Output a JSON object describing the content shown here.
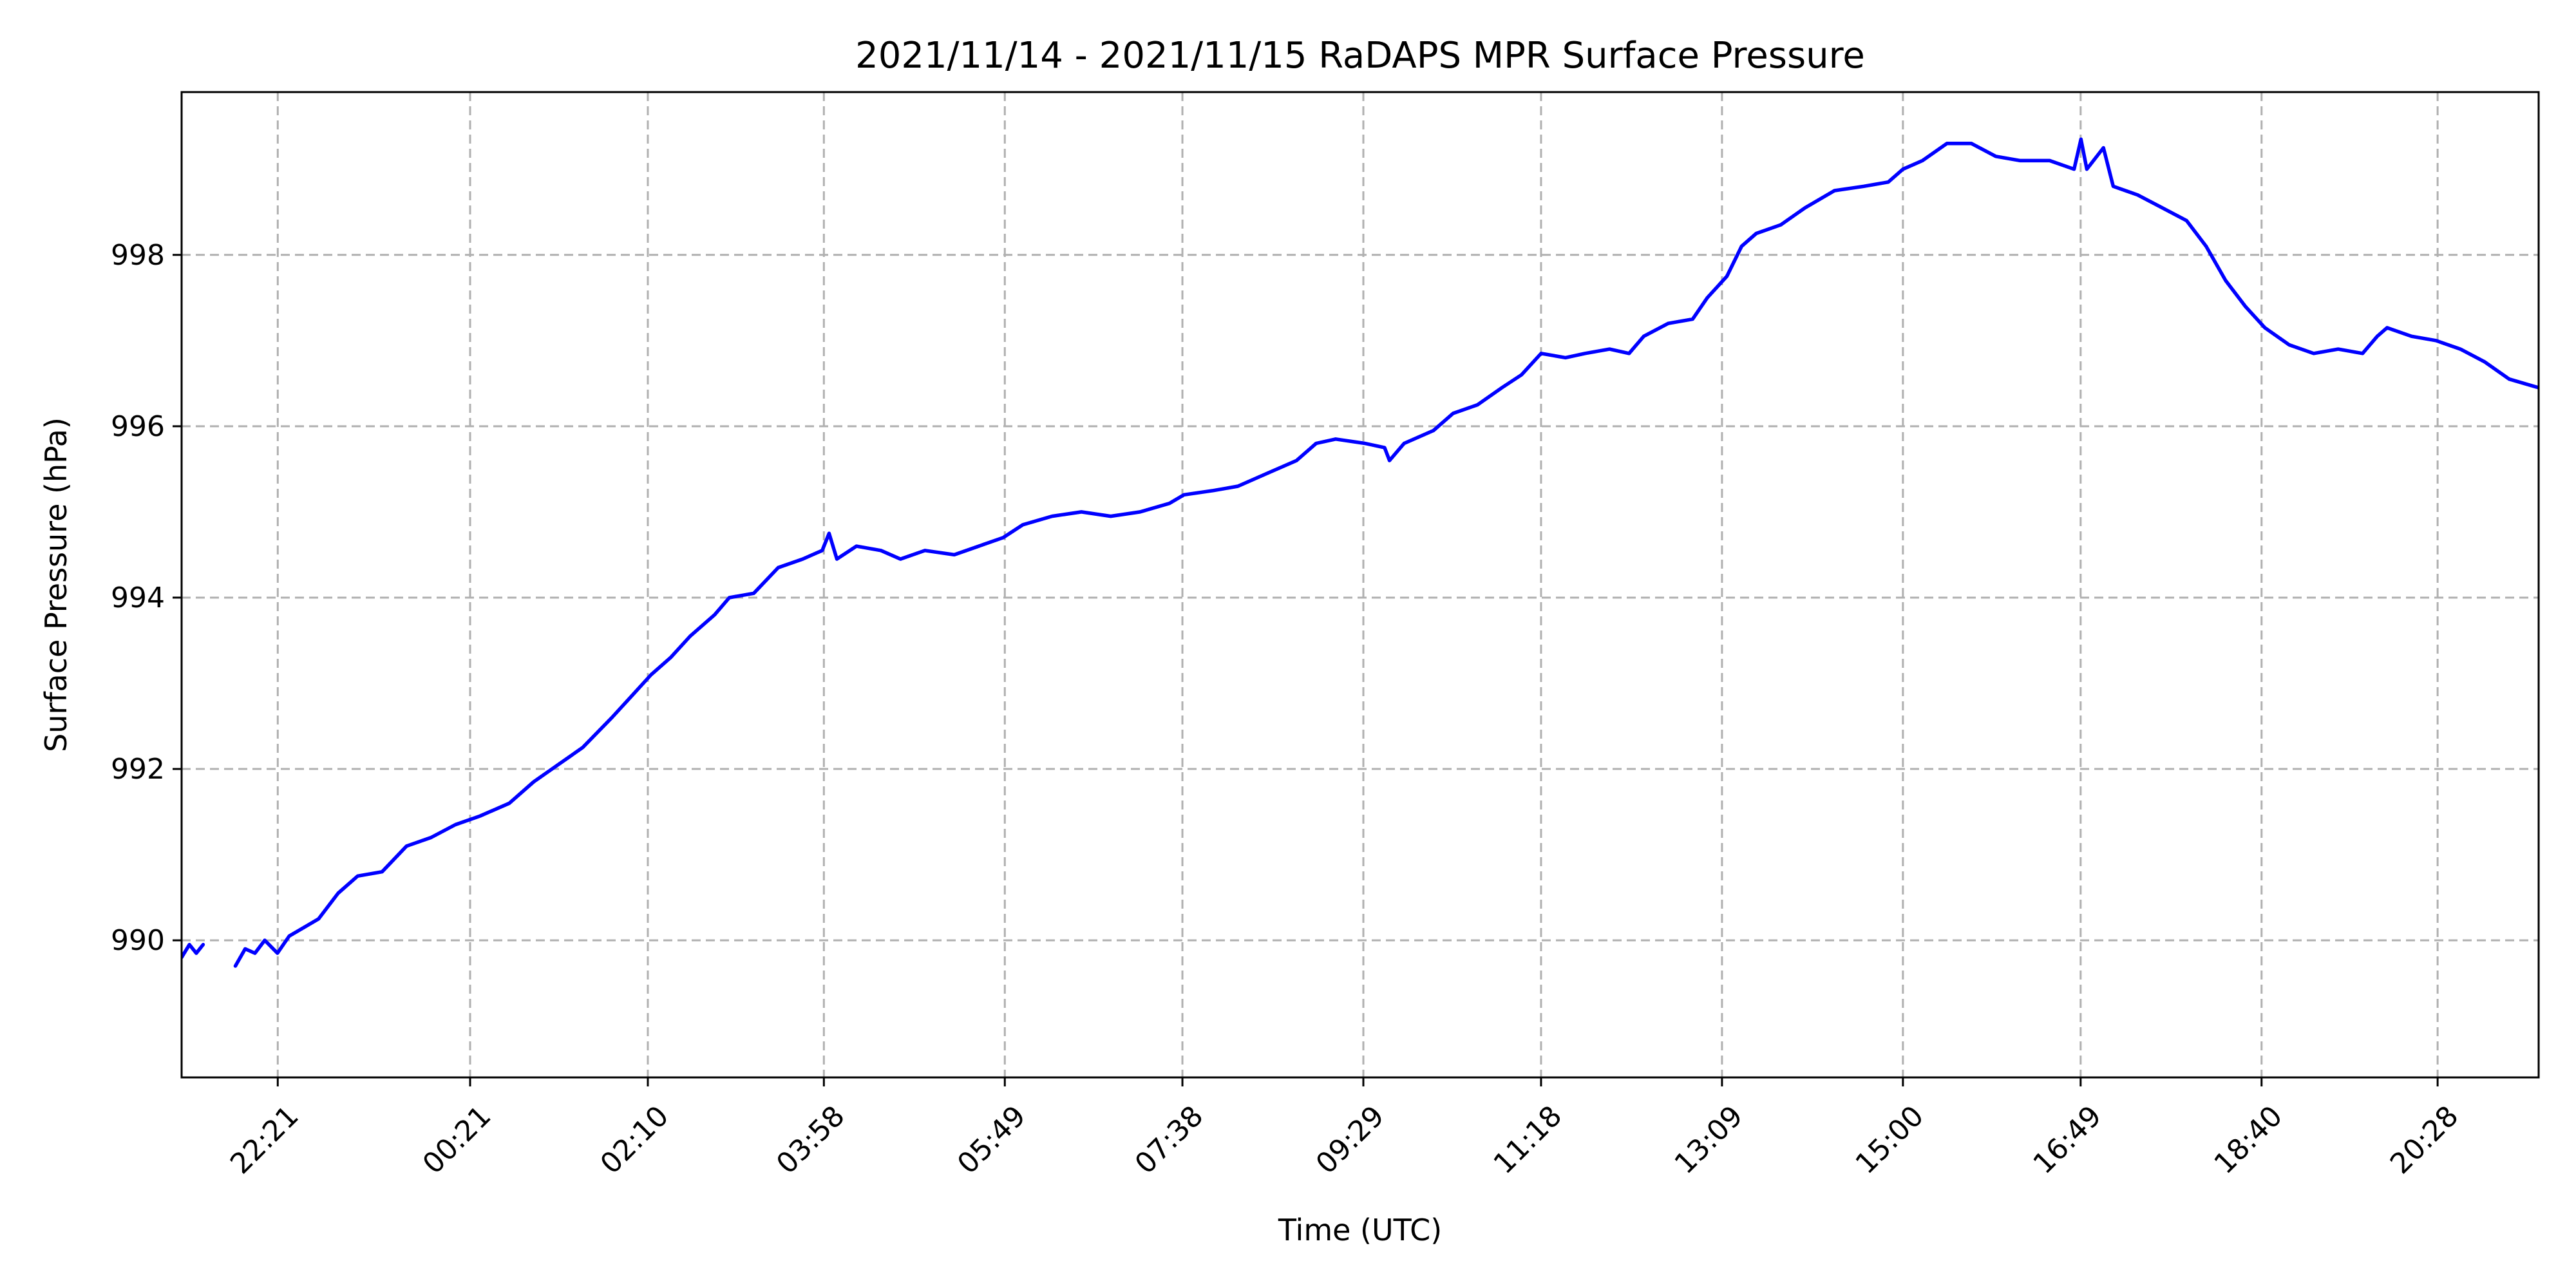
{
  "chart_data": {
    "type": "line",
    "title": "2021/11/14 - 2021/11/15 RaDAPS MPR Surface Pressure",
    "xlabel": "Time (UTC)",
    "ylabel": "Surface Pressure (hPa)",
    "x_unit": "hours",
    "xlim": [
      -2.6,
      21.5
    ],
    "ylim": [
      988.4,
      999.9
    ],
    "x_ticks": [
      {
        "value": -1.617,
        "label": "22:21"
      },
      {
        "value": 0.35,
        "label": "00:21"
      },
      {
        "value": 2.167,
        "label": "02:10"
      },
      {
        "value": 3.967,
        "label": "03:58"
      },
      {
        "value": 5.817,
        "label": "05:49"
      },
      {
        "value": 7.633,
        "label": "07:38"
      },
      {
        "value": 9.483,
        "label": "09:29"
      },
      {
        "value": 11.3,
        "label": "11:18"
      },
      {
        "value": 13.15,
        "label": "13:09"
      },
      {
        "value": 15.0,
        "label": "15:00"
      },
      {
        "value": 16.817,
        "label": "16:49"
      },
      {
        "value": 18.667,
        "label": "18:40"
      },
      {
        "value": 20.467,
        "label": "20:28"
      }
    ],
    "y_ticks": [
      990,
      992,
      994,
      996,
      998
    ],
    "grid": true,
    "series": [
      {
        "color": "#0000ff",
        "segments": [
          [
            [
              -2.6,
              989.8
            ],
            [
              -2.52,
              989.95
            ],
            [
              -2.45,
              989.85
            ],
            [
              -2.38,
              989.95
            ]
          ],
          [
            [
              -2.05,
              989.7
            ],
            [
              -1.95,
              989.9
            ],
            [
              -1.85,
              989.85
            ],
            [
              -1.75,
              990.0
            ],
            [
              -1.62,
              989.85
            ],
            [
              -1.5,
              990.05
            ],
            [
              -1.35,
              990.15
            ],
            [
              -1.2,
              990.25
            ],
            [
              -1.0,
              990.55
            ],
            [
              -0.8,
              990.75
            ],
            [
              -0.55,
              990.8
            ],
            [
              -0.3,
              991.1
            ],
            [
              -0.05,
              991.2
            ],
            [
              0.2,
              991.35
            ],
            [
              0.45,
              991.45
            ],
            [
              0.75,
              991.6
            ],
            [
              1.0,
              991.85
            ],
            [
              1.25,
              992.05
            ],
            [
              1.5,
              992.25
            ],
            [
              1.8,
              992.6
            ],
            [
              2.0,
              992.85
            ],
            [
              2.2,
              993.1
            ],
            [
              2.4,
              993.3
            ],
            [
              2.6,
              993.55
            ],
            [
              2.85,
              993.8
            ],
            [
              3.0,
              994.0
            ],
            [
              3.25,
              994.05
            ],
            [
              3.5,
              994.35
            ],
            [
              3.75,
              994.45
            ],
            [
              3.95,
              994.55
            ],
            [
              4.02,
              994.75
            ],
            [
              4.1,
              994.45
            ],
            [
              4.3,
              994.6
            ],
            [
              4.55,
              994.55
            ],
            [
              4.75,
              994.45
            ],
            [
              5.0,
              994.55
            ],
            [
              5.3,
              994.5
            ],
            [
              5.55,
              994.6
            ],
            [
              5.8,
              994.7
            ],
            [
              6.0,
              994.85
            ],
            [
              6.3,
              994.95
            ],
            [
              6.6,
              995.0
            ],
            [
              6.9,
              994.95
            ],
            [
              7.2,
              995.0
            ],
            [
              7.5,
              995.1
            ],
            [
              7.65,
              995.2
            ],
            [
              7.95,
              995.25
            ],
            [
              8.2,
              995.3
            ],
            [
              8.5,
              995.45
            ],
            [
              8.8,
              995.6
            ],
            [
              9.0,
              995.8
            ],
            [
              9.2,
              995.85
            ],
            [
              9.5,
              995.8
            ],
            [
              9.7,
              995.75
            ],
            [
              9.75,
              995.6
            ],
            [
              9.9,
              995.8
            ],
            [
              10.2,
              995.95
            ],
            [
              10.4,
              996.15
            ],
            [
              10.65,
              996.25
            ],
            [
              10.9,
              996.45
            ],
            [
              11.1,
              996.6
            ],
            [
              11.3,
              996.85
            ],
            [
              11.55,
              996.8
            ],
            [
              11.75,
              996.85
            ],
            [
              12.0,
              996.9
            ],
            [
              12.2,
              996.85
            ],
            [
              12.35,
              997.05
            ],
            [
              12.6,
              997.2
            ],
            [
              12.85,
              997.25
            ],
            [
              13.0,
              997.5
            ],
            [
              13.2,
              997.75
            ],
            [
              13.35,
              998.1
            ],
            [
              13.5,
              998.25
            ],
            [
              13.75,
              998.35
            ],
            [
              14.0,
              998.55
            ],
            [
              14.3,
              998.75
            ],
            [
              14.6,
              998.8
            ],
            [
              14.85,
              998.85
            ],
            [
              15.0,
              999.0
            ],
            [
              15.2,
              999.1
            ],
            [
              15.45,
              999.3
            ],
            [
              15.7,
              999.3
            ],
            [
              15.95,
              999.15
            ],
            [
              16.2,
              999.1
            ],
            [
              16.5,
              999.1
            ],
            [
              16.75,
              999.0
            ],
            [
              16.82,
              999.35
            ],
            [
              16.88,
              999.0
            ],
            [
              17.05,
              999.25
            ],
            [
              17.15,
              998.8
            ],
            [
              17.4,
              998.7
            ],
            [
              17.65,
              998.55
            ],
            [
              17.9,
              998.4
            ],
            [
              18.1,
              998.1
            ],
            [
              18.3,
              997.7
            ],
            [
              18.5,
              997.4
            ],
            [
              18.7,
              997.15
            ],
            [
              18.95,
              996.95
            ],
            [
              19.2,
              996.85
            ],
            [
              19.45,
              996.9
            ],
            [
              19.7,
              996.85
            ],
            [
              19.85,
              997.05
            ],
            [
              19.95,
              997.15
            ],
            [
              20.2,
              997.05
            ],
            [
              20.45,
              997.0
            ],
            [
              20.7,
              996.9
            ],
            [
              20.95,
              996.75
            ],
            [
              21.2,
              996.55
            ],
            [
              21.5,
              996.45
            ]
          ]
        ]
      }
    ]
  }
}
